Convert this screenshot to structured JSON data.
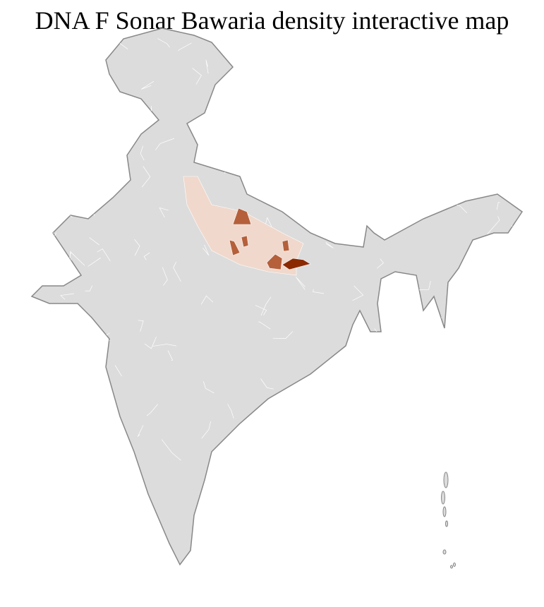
{
  "title": "DNA F Sonar Bawaria density interactive map",
  "colors": {
    "base_fill": "#dcdcdc",
    "state_border": "#888888",
    "district_border": "#ffffff",
    "density_low": "#f0d8cc",
    "density_mid": "#b5603b",
    "density_high": "#8b2a00"
  },
  "legend": null
}
